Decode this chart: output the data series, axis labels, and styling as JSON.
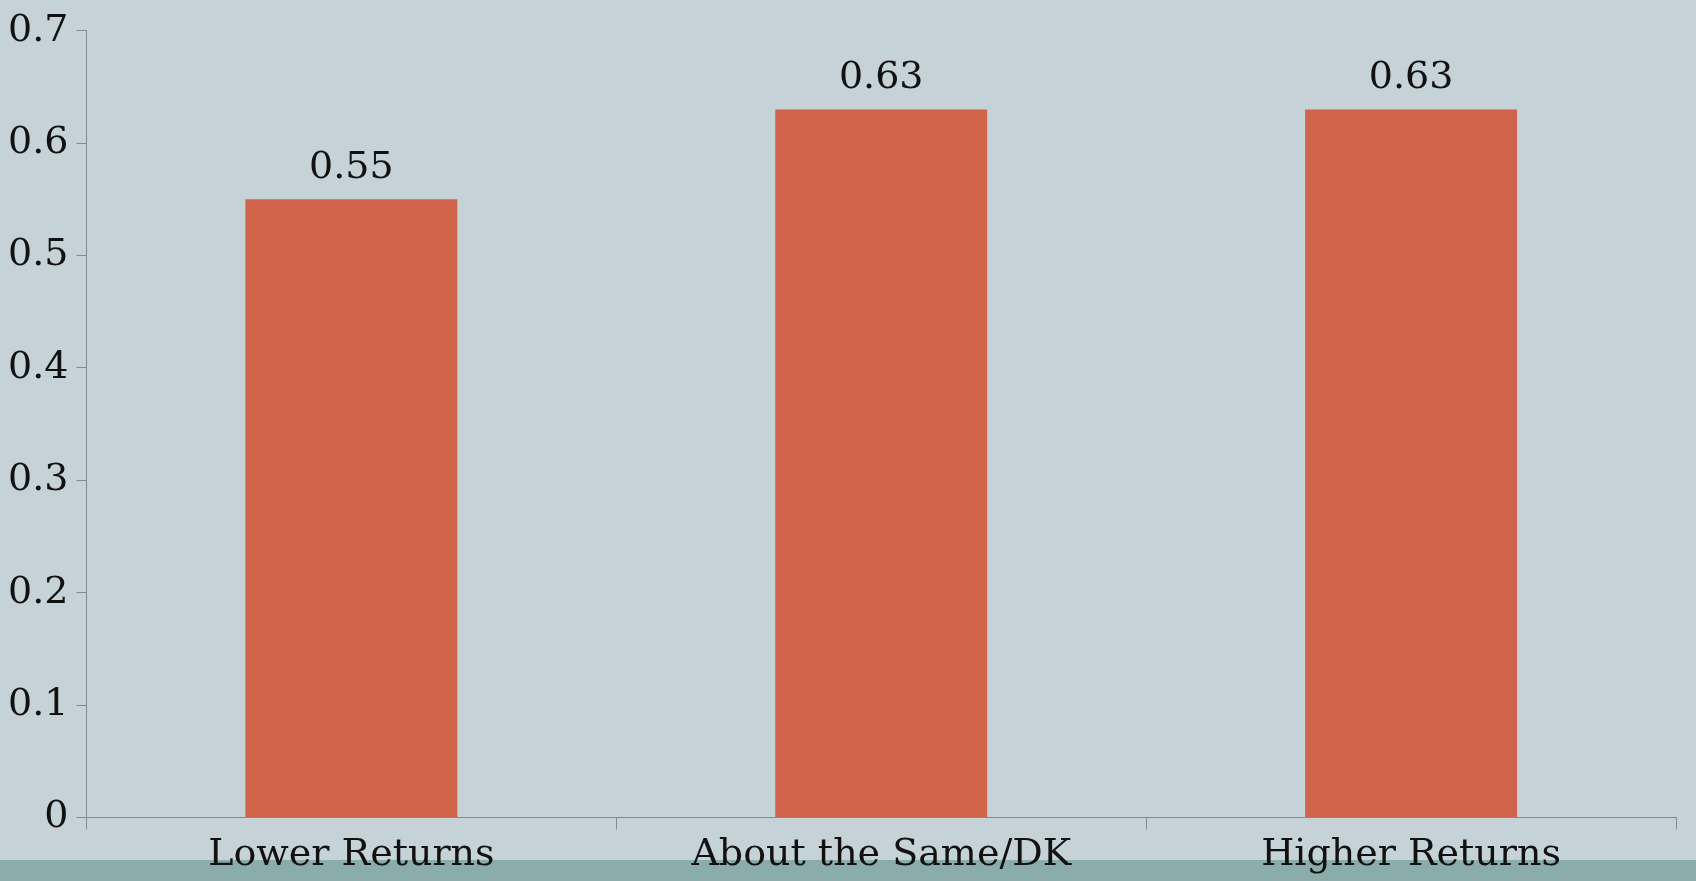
{
  "chart_data": {
    "type": "bar",
    "categories": [
      "Lower Returns",
      "About the Same/DK",
      "Higher Returns"
    ],
    "values": [
      0.55,
      0.63,
      0.63
    ],
    "color": "#d2634b",
    "ylim": [
      0,
      0.7
    ],
    "yticks": [
      0,
      0.1,
      0.2,
      0.3,
      0.4,
      0.5,
      0.6,
      0.7
    ],
    "grid": false,
    "legend": false,
    "data_labels": true
  }
}
